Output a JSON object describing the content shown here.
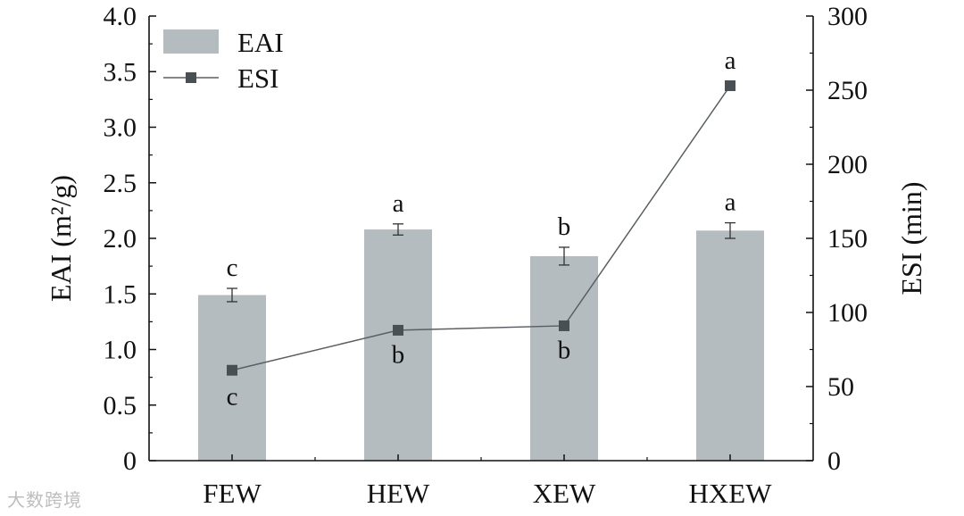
{
  "chart_data": {
    "type": "bar",
    "categories": [
      "FEW",
      "HEW",
      "XEW",
      "HXEW"
    ],
    "series": [
      {
        "name": "EAI",
        "type": "bar",
        "axis": "left",
        "values": [
          1.49,
          2.08,
          1.84,
          2.07
        ],
        "errors": [
          0.06,
          0.05,
          0.08,
          0.07
        ],
        "significance": [
          "c",
          "a",
          "b",
          "a"
        ],
        "color": "#b5bcbf"
      },
      {
        "name": "ESI",
        "type": "line",
        "axis": "right",
        "values": [
          61,
          88,
          91,
          253
        ],
        "errors": [
          3,
          1.5,
          1.5,
          3
        ],
        "significance": [
          "c",
          "b",
          "b",
          "a"
        ],
        "color": "#4a4f53"
      }
    ],
    "ylabel": "EAI (m²/g)",
    "y2label": "ESI (min)",
    "ylim": [
      0,
      4.0
    ],
    "y2lim": [
      0,
      300
    ],
    "yticks": [
      "0",
      "0.5",
      "1.0",
      "1.5",
      "2.0",
      "2.5",
      "3.0",
      "3.5",
      "4.0"
    ],
    "y2ticks": [
      "0",
      "50",
      "100",
      "150",
      "200",
      "250",
      "300"
    ],
    "legend": "top-left",
    "grid": false
  },
  "watermark": "大数跨境"
}
